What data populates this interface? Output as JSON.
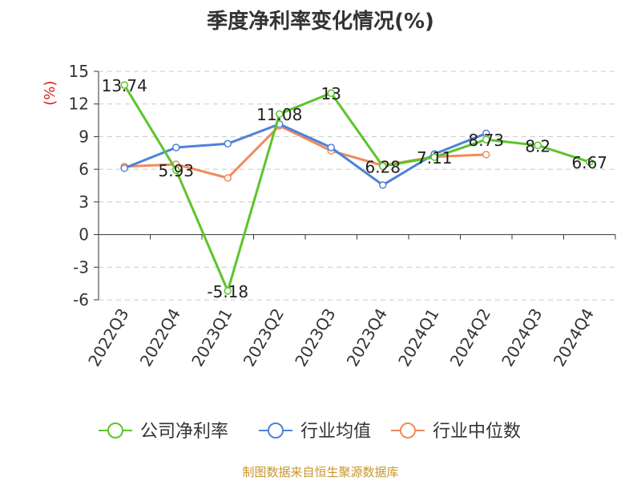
{
  "chart_data": {
    "type": "line",
    "title": "季度净利率变化情况(%)",
    "ylabel": "(%)",
    "ylabel_color": "#e02020",
    "categories": [
      "2022Q3",
      "2022Q4",
      "2023Q1",
      "2023Q2",
      "2023Q3",
      "2023Q4",
      "2024Q1",
      "2024Q2",
      "2024Q3",
      "2024Q4"
    ],
    "ylim": [
      -6,
      15
    ],
    "yticks": [
      15,
      12,
      9,
      6,
      3,
      0,
      -3,
      -6
    ],
    "grid": true,
    "legend_position": "bottom",
    "series": [
      {
        "name": "公司净利率",
        "color": "#5dc42a",
        "values": [
          13.74,
          5.93,
          -5.18,
          11.08,
          13,
          6.28,
          7.11,
          8.73,
          8.2,
          6.67
        ],
        "labels": [
          "13.74",
          "5.93",
          "-5.18",
          "11.08",
          "13",
          "6.28",
          "7.11",
          "8.73",
          "8.2",
          "6.67"
        ]
      },
      {
        "name": "行业均值",
        "color": "#4f81d9",
        "values": [
          6.1,
          8.0,
          8.35,
          10.15,
          8.0,
          4.55,
          7.4,
          9.3,
          null,
          null
        ]
      },
      {
        "name": "行业中位数",
        "color": "#f08a5d",
        "values": [
          6.25,
          6.45,
          5.2,
          10.0,
          7.7,
          6.35,
          7.15,
          7.35,
          null,
          null
        ]
      }
    ],
    "source": "制图数据来自恒生聚源数据库"
  }
}
